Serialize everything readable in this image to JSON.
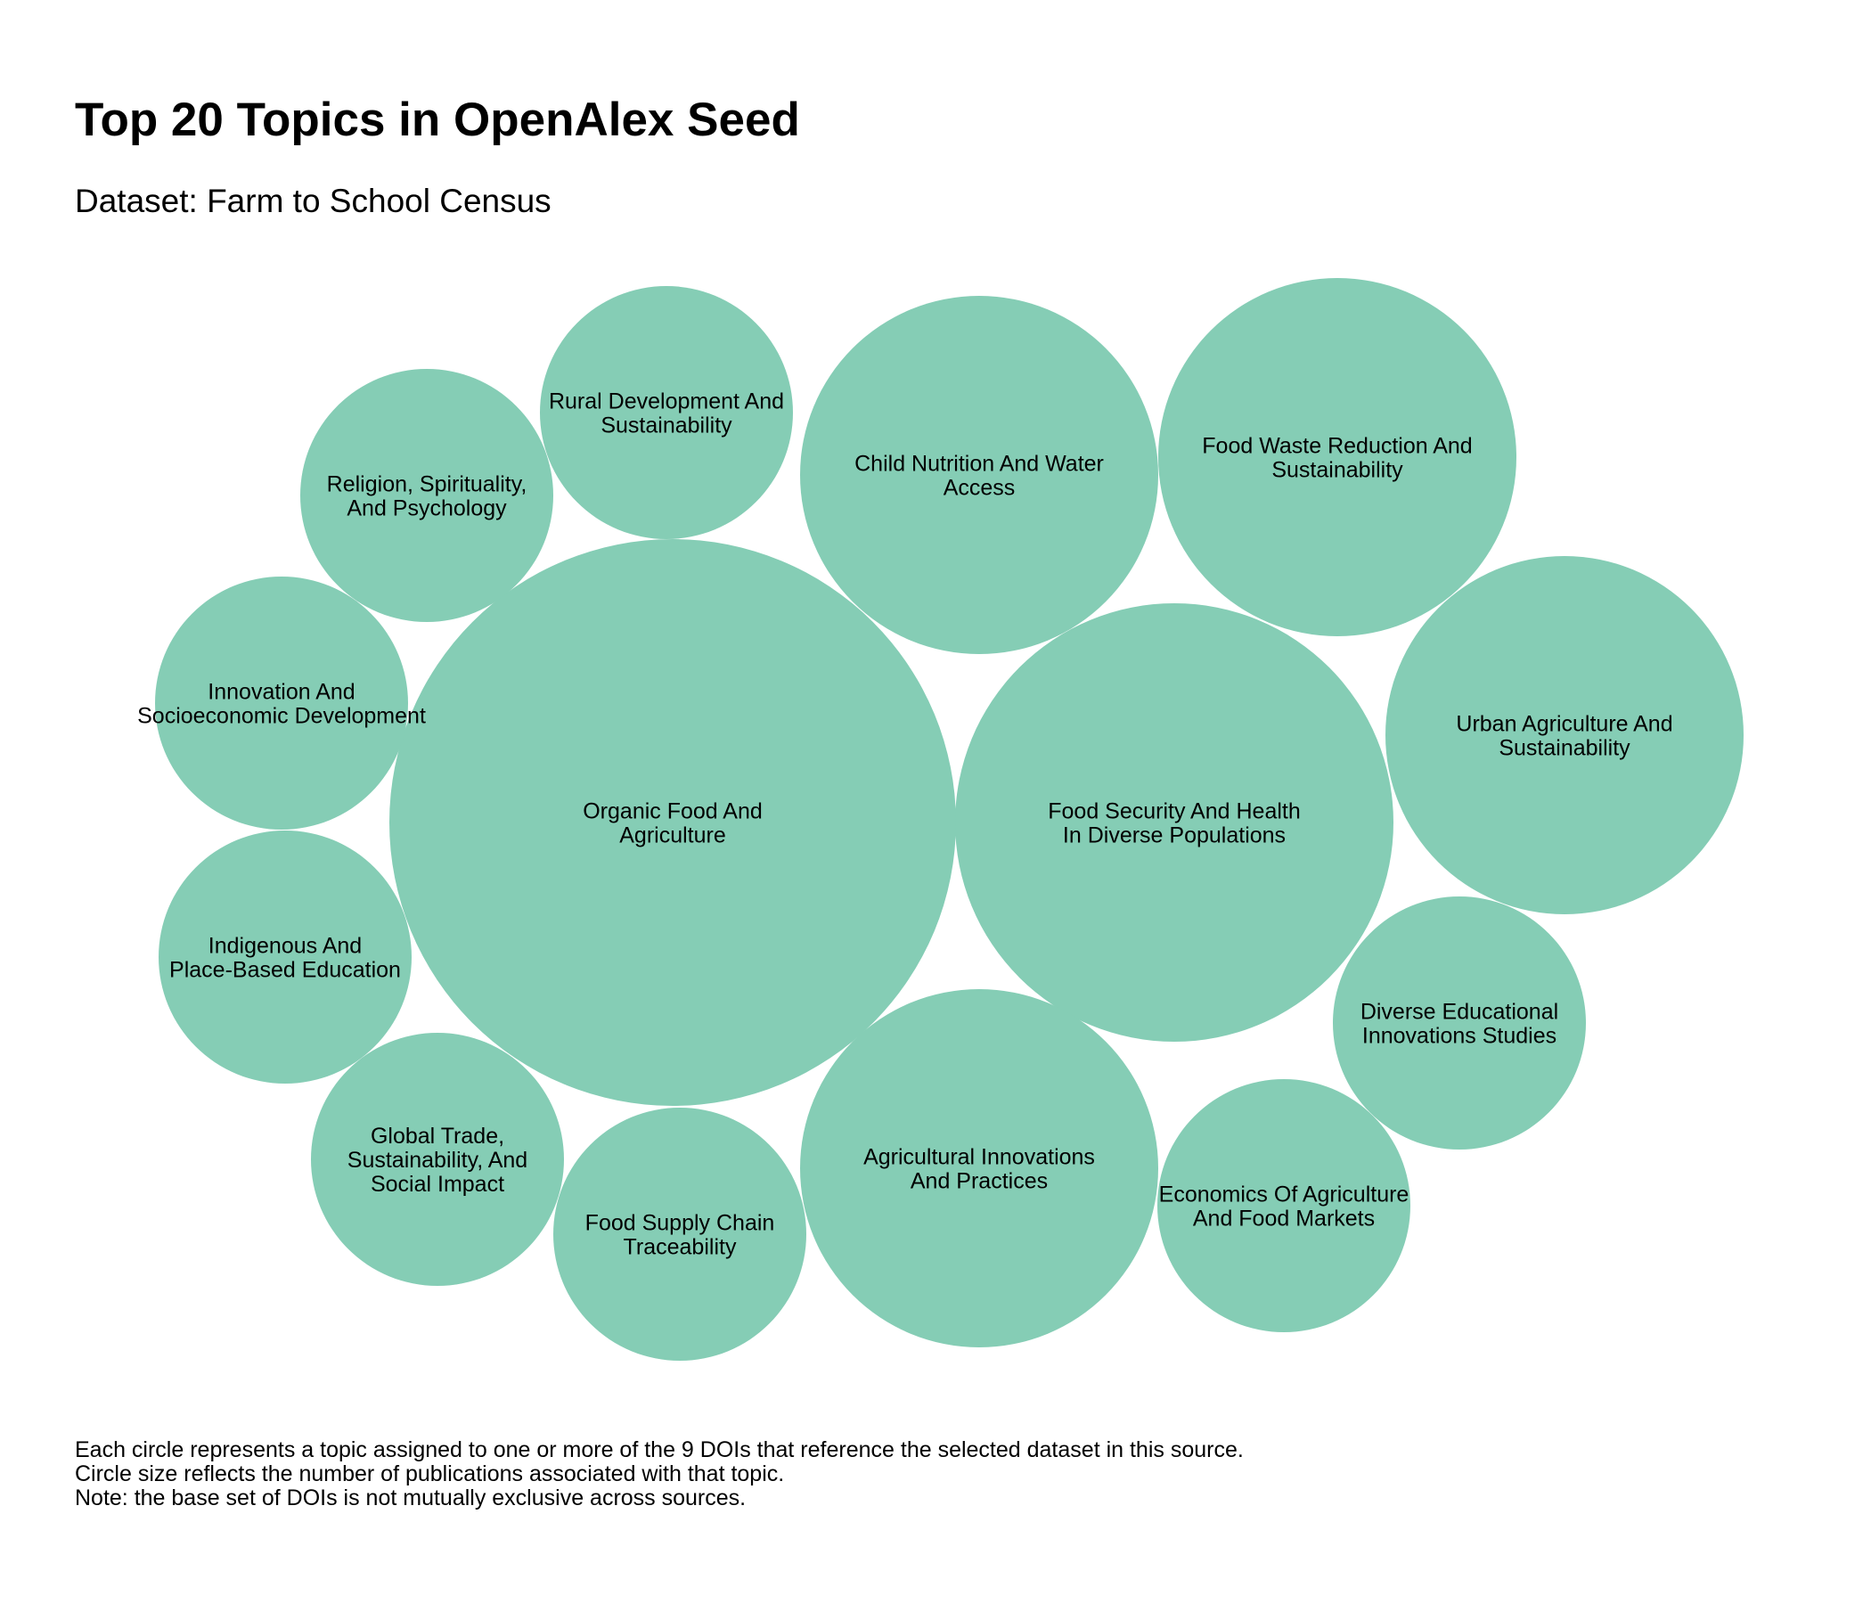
{
  "title": "Top 20 Topics in OpenAlex Seed",
  "subtitle": "Dataset: Farm to School Census",
  "colors": {
    "bubble_fill": "#85cdb5",
    "label": "#000000",
    "background": "#ffffff"
  },
  "chart_data": {
    "type": "bubble",
    "title": "Top 20 Topics in OpenAlex Seed",
    "subtitle": "Dataset: Farm to School Census",
    "legend": "none",
    "grid": false,
    "topics": [
      {
        "label": [
          "Organic Food And",
          "Agriculture"
        ]
      },
      {
        "label": [
          "Food Security And Health",
          "In Diverse Populations"
        ]
      },
      {
        "label": [
          "Child Nutrition And Water",
          "Access"
        ]
      },
      {
        "label": [
          "Food Waste Reduction And",
          "Sustainability"
        ]
      },
      {
        "label": [
          "Urban Agriculture And",
          "Sustainability"
        ]
      },
      {
        "label": [
          "Agricultural Innovations",
          "And Practices"
        ]
      },
      {
        "label": [
          "Rural Development And",
          "Sustainability"
        ]
      },
      {
        "label": [
          "Religion, Spirituality,",
          "And Psychology"
        ]
      },
      {
        "label": [
          "Innovation And",
          "Socioeconomic Development"
        ]
      },
      {
        "label": [
          "Indigenous And",
          "Place-Based Education"
        ]
      },
      {
        "label": [
          "Global Trade,",
          "Sustainability, And",
          "Social Impact"
        ]
      },
      {
        "label": [
          "Food Supply Chain",
          "Traceability"
        ]
      },
      {
        "label": [
          "Diverse Educational",
          "Innovations Studies"
        ]
      },
      {
        "label": [
          "Economics Of Agriculture",
          "And Food Markets"
        ]
      }
    ]
  },
  "footnote": {
    "line1": "Each circle represents a topic assigned to one or more of the 9 DOIs that reference the selected dataset in this source.",
    "line2": "Circle size reflects the number of publications associated with that topic.",
    "line3": "Note: the base set of DOIs is not mutually exclusive across sources."
  }
}
